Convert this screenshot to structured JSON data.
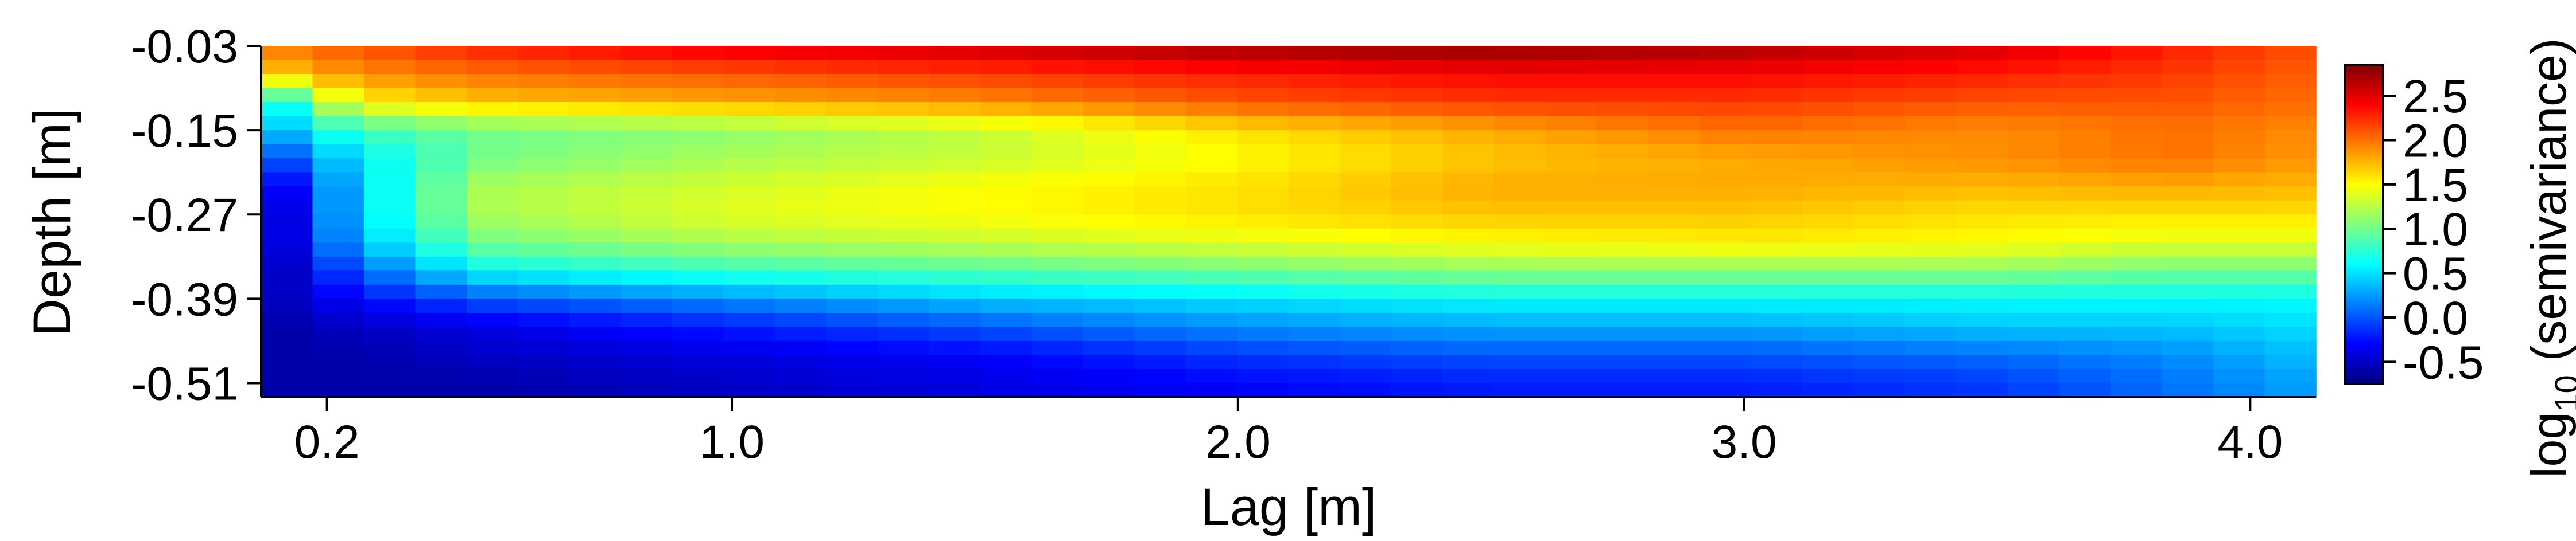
{
  "chart_data": {
    "type": "heatmap",
    "title": "",
    "xlabel": "Lag [m]",
    "ylabel": "Depth [m]",
    "xlim": [
      0.07,
      4.13
    ],
    "ylim": [
      -0.53,
      -0.03
    ],
    "x_ticks": [
      {
        "value": 0.2,
        "label": "0.2"
      },
      {
        "value": 1.0,
        "label": "1.0"
      },
      {
        "value": 2.0,
        "label": "2.0"
      },
      {
        "value": 3.0,
        "label": "3.0"
      },
      {
        "value": 4.0,
        "label": "4.0"
      }
    ],
    "y_ticks": [
      {
        "value": -0.03,
        "label": "-0.03"
      },
      {
        "value": -0.15,
        "label": "-0.15"
      },
      {
        "value": -0.27,
        "label": "-0.27"
      },
      {
        "value": -0.39,
        "label": "-0.39"
      },
      {
        "value": -0.51,
        "label": "-0.51"
      }
    ],
    "colorbar": {
      "label_main": "log",
      "label_sub": "10",
      "label_rest": " (semivariance)",
      "range": [
        -0.75,
        2.85
      ],
      "ticks": [
        {
          "value": 2.5,
          "label": "2.5"
        },
        {
          "value": 2.0,
          "label": "2.0"
        },
        {
          "value": 1.5,
          "label": "1.5"
        },
        {
          "value": 1.0,
          "label": "1.0"
        },
        {
          "value": 0.5,
          "label": "0.5"
        },
        {
          "value": 0.0,
          "label": "0.0"
        },
        {
          "value": -0.5,
          "label": "-0.5"
        }
      ],
      "colors": [
        "#00007F",
        "#0000FF",
        "#007FFF",
        "#00FFFF",
        "#7FFF7F",
        "#FFFF00",
        "#FF7F00",
        "#FF0000",
        "#7F0000"
      ]
    },
    "grid": {
      "n_lags": 40,
      "lag_start": 0.07,
      "lag_step": 0.1015,
      "depths": [
        -0.03,
        -0.05,
        -0.07,
        -0.09,
        -0.11,
        -0.13,
        -0.15,
        -0.17,
        -0.19,
        -0.21,
        -0.23,
        -0.25,
        -0.27,
        -0.29,
        -0.31,
        -0.33,
        -0.35,
        -0.37,
        -0.39,
        -0.41,
        -0.43,
        -0.45,
        -0.47,
        -0.49,
        -0.51,
        -0.53
      ],
      "profile_depths": [
        -0.03,
        -0.07,
        -0.11,
        -0.15,
        -0.19,
        -0.23,
        -0.27,
        -0.31,
        -0.35,
        -0.39,
        -0.43,
        -0.47,
        -0.51,
        -0.53
      ],
      "profiles": [
        {
          "lag": 0.12,
          "values": [
            2.0,
            1.7,
            0.7,
            0.4,
            0.0,
            -0.3,
            -0.4,
            -0.4,
            -0.5,
            -0.5,
            -0.6,
            -0.6,
            -0.6,
            -0.6
          ]
        },
        {
          "lag": 0.25,
          "values": [
            2.1,
            1.9,
            1.5,
            0.8,
            0.5,
            0.4,
            0.4,
            0.3,
            0.0,
            -0.3,
            -0.5,
            -0.6,
            -0.6,
            -0.6
          ]
        },
        {
          "lag": 0.5,
          "values": [
            2.3,
            2.0,
            1.7,
            1.0,
            1.0,
            1.2,
            1.2,
            1.0,
            0.6,
            0.0,
            -0.4,
            -0.5,
            -0.6,
            -0.6
          ]
        },
        {
          "lag": 1.0,
          "values": [
            2.5,
            2.1,
            1.8,
            1.1,
            1.2,
            1.35,
            1.4,
            1.2,
            0.8,
            0.2,
            -0.2,
            -0.4,
            -0.5,
            -0.5
          ]
        },
        {
          "lag": 1.5,
          "values": [
            2.6,
            2.2,
            1.9,
            1.3,
            1.3,
            1.5,
            1.5,
            1.3,
            0.9,
            0.4,
            0.0,
            -0.3,
            -0.4,
            -0.4
          ]
        },
        {
          "lag": 2.0,
          "values": [
            2.75,
            2.3,
            2.1,
            1.6,
            1.5,
            1.6,
            1.6,
            1.4,
            1.0,
            0.5,
            0.2,
            -0.1,
            -0.3,
            -0.3
          ]
        },
        {
          "lag": 2.5,
          "values": [
            2.8,
            2.4,
            2.2,
            1.8,
            1.7,
            1.8,
            1.7,
            1.5,
            1.1,
            0.6,
            0.3,
            0.0,
            -0.2,
            -0.2
          ]
        },
        {
          "lag": 3.0,
          "values": [
            2.7,
            2.4,
            2.2,
            2.0,
            1.8,
            1.8,
            1.7,
            1.55,
            1.1,
            0.6,
            0.3,
            0.0,
            -0.2,
            -0.2
          ]
        },
        {
          "lag": 3.5,
          "values": [
            2.55,
            2.3,
            2.1,
            1.9,
            1.9,
            1.75,
            1.6,
            1.5,
            1.1,
            0.6,
            0.4,
            0.1,
            -0.1,
            -0.1
          ]
        },
        {
          "lag": 3.85,
          "values": [
            2.3,
            2.2,
            2.1,
            2.0,
            2.0,
            1.8,
            1.6,
            1.4,
            1.0,
            0.6,
            0.4,
            0.2,
            0.1,
            0.1
          ]
        },
        {
          "lag": 4.15,
          "values": [
            2.1,
            2.05,
            2.0,
            1.9,
            1.85,
            1.75,
            1.6,
            1.4,
            1.0,
            0.6,
            0.5,
            0.4,
            0.3,
            0.3
          ]
        }
      ]
    }
  }
}
